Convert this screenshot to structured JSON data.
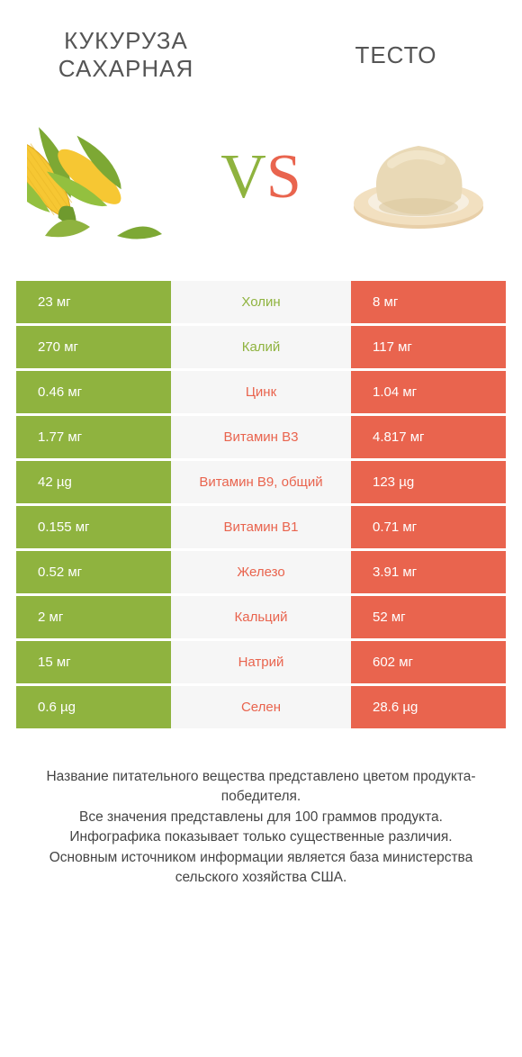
{
  "colors": {
    "left_bg": "#8fb33f",
    "right_bg": "#e9644e",
    "mid_bg": "#f6f6f6",
    "left_text_color": "#8fb33f",
    "right_text_color": "#e9644e",
    "row_value_color": "#ffffff"
  },
  "header": {
    "left_title": "Кукуруза сахарная",
    "right_title": "Тесто"
  },
  "vs": {
    "v": "V",
    "s": "S"
  },
  "rows": [
    {
      "left": "23 мг",
      "label": "Холин",
      "right": "8 мг",
      "winner": "left"
    },
    {
      "left": "270 мг",
      "label": "Калий",
      "right": "117 мг",
      "winner": "left"
    },
    {
      "left": "0.46 мг",
      "label": "Цинк",
      "right": "1.04 мг",
      "winner": "right"
    },
    {
      "left": "1.77 мг",
      "label": "Витамин B3",
      "right": "4.817 мг",
      "winner": "right"
    },
    {
      "left": "42 µg",
      "label": "Витамин B9, общий",
      "right": "123 µg",
      "winner": "right"
    },
    {
      "left": "0.155 мг",
      "label": "Витамин B1",
      "right": "0.71 мг",
      "winner": "right"
    },
    {
      "left": "0.52 мг",
      "label": "Железо",
      "right": "3.91 мг",
      "winner": "right"
    },
    {
      "left": "2 мг",
      "label": "Кальций",
      "right": "52 мг",
      "winner": "right"
    },
    {
      "left": "15 мг",
      "label": "Натрий",
      "right": "602 мг",
      "winner": "right"
    },
    {
      "left": "0.6 µg",
      "label": "Селен",
      "right": "28.6 µg",
      "winner": "right"
    }
  ],
  "footer": {
    "line1": "Название питательного вещества представлено цветом продукта-победителя.",
    "line2": "Все значения представлены для 100 граммов продукта.",
    "line3": "Инфографика показывает только существенные различия.",
    "line4": "Основным источником информации является база министерства сельского хозяйства США."
  },
  "icons": {
    "left": "corn-icon",
    "right": "dough-icon"
  }
}
